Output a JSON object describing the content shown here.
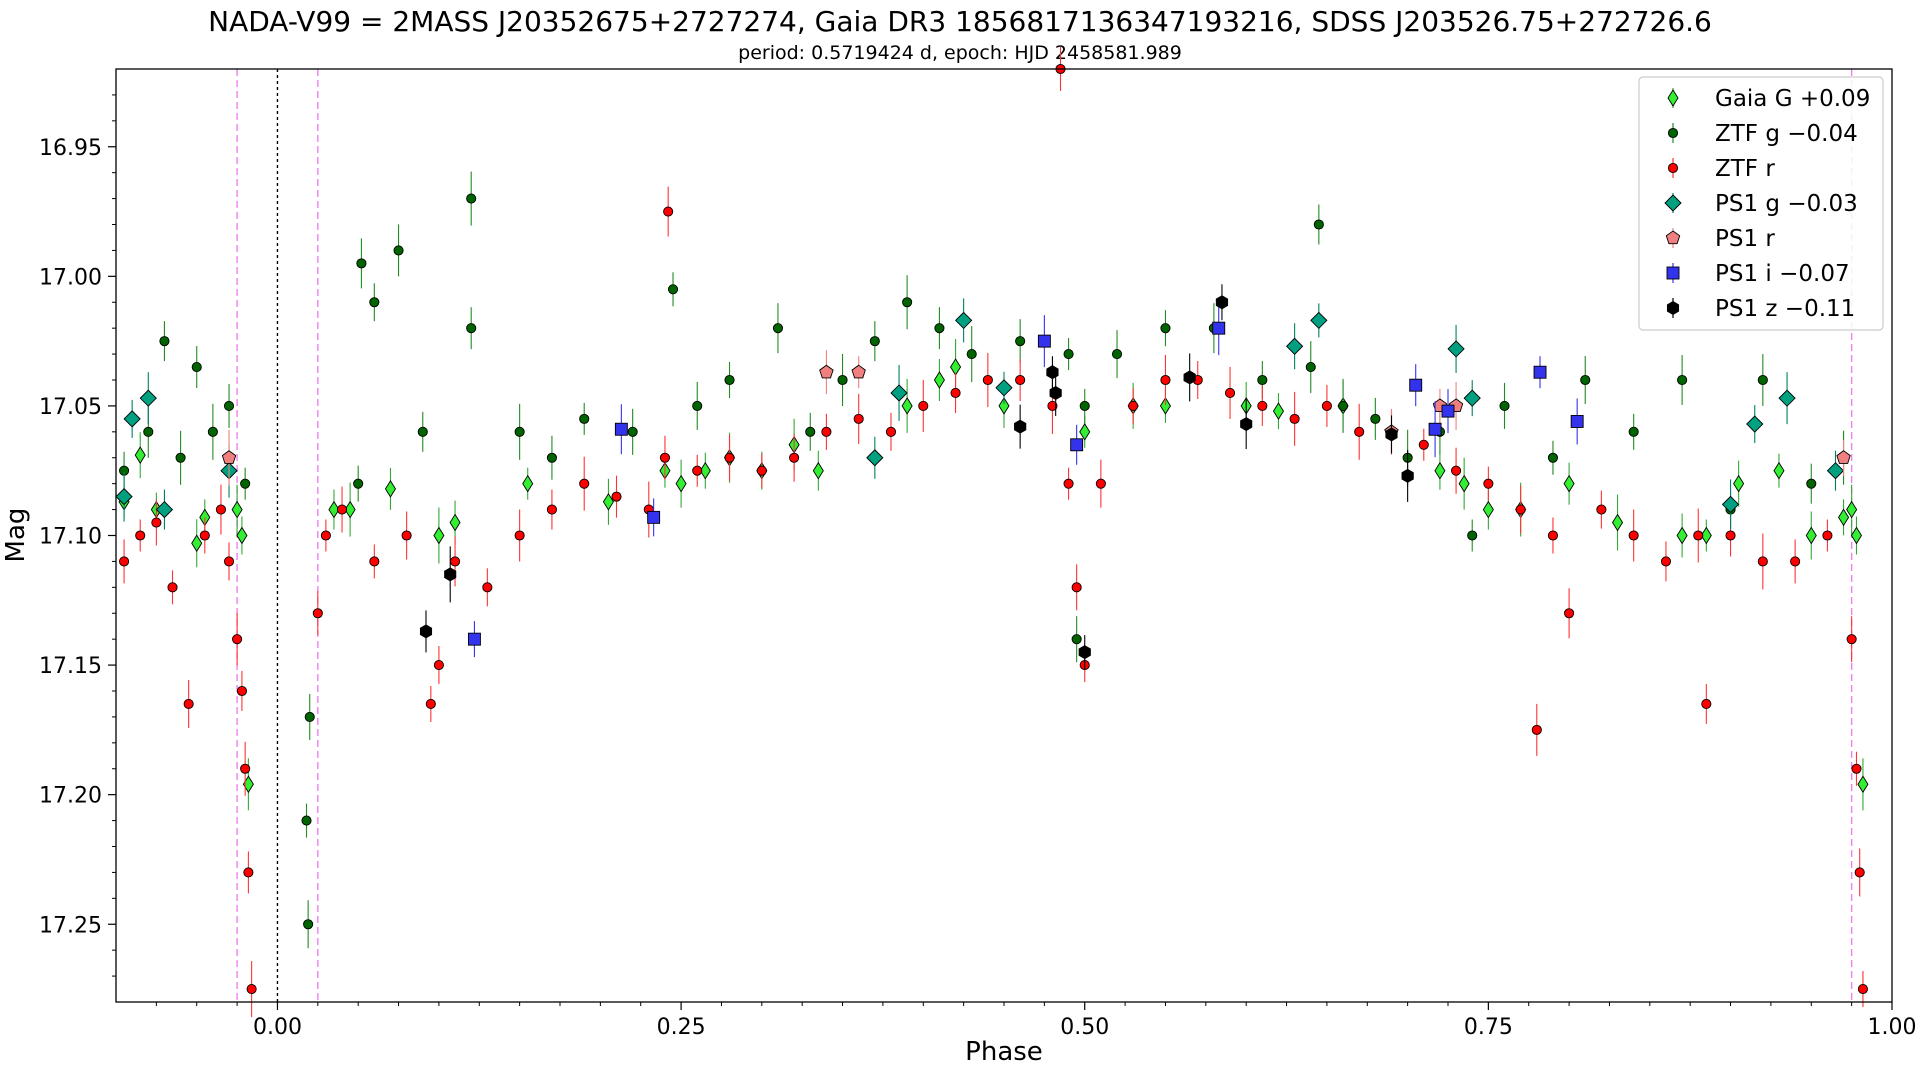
{
  "chart_data": {
    "type": "scatter",
    "title": "NADA-V99 = 2MASS J20352675+2727274, Gaia DR3 1856817136347193216, SDSS J203526.75+272726.6",
    "subtitle": "period: 0.5719424 d, epoch: HJD 2458581.989",
    "xlabel": "Phase",
    "ylabel": "Mag",
    "xlim": [
      -0.1,
      1.0
    ],
    "ylim": [
      17.28,
      16.92
    ],
    "y_inverted": true,
    "x_ticks": [
      0.0,
      0.25,
      0.5,
      0.75,
      1.0
    ],
    "x_tick_labels": [
      "0.00",
      "0.25",
      "0.50",
      "0.75",
      "1.00"
    ],
    "y_ticks": [
      16.95,
      17.0,
      17.05,
      17.1,
      17.15,
      17.2,
      17.25
    ],
    "y_tick_labels": [
      "16.95",
      "17.00",
      "17.05",
      "17.10",
      "17.15",
      "17.20",
      "17.25"
    ],
    "grid": false,
    "legend_position": "top-right",
    "vertical_lines": [
      {
        "x": 0.0,
        "style": "dotted",
        "color": "#000000"
      },
      {
        "x": -0.025,
        "style": "dashed",
        "color": "#ee82ee"
      },
      {
        "x": 0.025,
        "style": "dashed",
        "color": "#ee82ee"
      },
      {
        "x": 0.975,
        "style": "dashed",
        "color": "#ee82ee"
      }
    ],
    "series": [
      {
        "name": "Gaia G +0.09",
        "marker": "diamond",
        "color": "#33ee33",
        "error_color": "#33aa33",
        "points": [
          [
            -0.095,
            17.087
          ],
          [
            -0.085,
            17.069
          ],
          [
            -0.075,
            17.09
          ],
          [
            -0.05,
            17.103
          ],
          [
            -0.045,
            17.093
          ],
          [
            -0.025,
            17.09
          ],
          [
            -0.022,
            17.1
          ],
          [
            -0.018,
            17.196
          ],
          [
            0.035,
            17.09
          ],
          [
            0.045,
            17.09
          ],
          [
            0.07,
            17.082
          ],
          [
            0.1,
            17.1
          ],
          [
            0.11,
            17.095
          ],
          [
            0.155,
            17.08
          ],
          [
            0.205,
            17.087
          ],
          [
            0.24,
            17.075
          ],
          [
            0.25,
            17.08
          ],
          [
            0.265,
            17.075
          ],
          [
            0.28,
            17.07
          ],
          [
            0.3,
            17.075
          ],
          [
            0.32,
            17.065
          ],
          [
            0.335,
            17.075
          ],
          [
            0.39,
            17.05
          ],
          [
            0.41,
            17.04
          ],
          [
            0.42,
            17.035
          ],
          [
            0.45,
            17.05
          ],
          [
            0.5,
            17.06
          ],
          [
            0.53,
            17.05
          ],
          [
            0.55,
            17.05
          ],
          [
            0.6,
            17.05
          ],
          [
            0.62,
            17.052
          ],
          [
            0.66,
            17.05
          ],
          [
            0.72,
            17.075
          ],
          [
            0.735,
            17.08
          ],
          [
            0.75,
            17.09
          ],
          [
            0.77,
            17.09
          ],
          [
            0.8,
            17.08
          ],
          [
            0.83,
            17.095
          ],
          [
            0.87,
            17.1
          ],
          [
            0.885,
            17.1
          ],
          [
            0.905,
            17.08
          ],
          [
            0.93,
            17.075
          ],
          [
            0.95,
            17.1
          ],
          [
            0.97,
            17.093
          ],
          [
            0.975,
            17.09
          ],
          [
            0.978,
            17.1
          ],
          [
            0.982,
            17.196
          ]
        ]
      },
      {
        "name": "ZTF g −0.04",
        "marker": "circle",
        "color": "#006400",
        "error_color": "#228b22",
        "points": [
          [
            -0.095,
            17.075
          ],
          [
            -0.08,
            17.06
          ],
          [
            -0.07,
            17.025
          ],
          [
            -0.06,
            17.07
          ],
          [
            -0.05,
            17.035
          ],
          [
            -0.04,
            17.06
          ],
          [
            -0.03,
            17.05
          ],
          [
            -0.02,
            17.08
          ],
          [
            0.02,
            17.17
          ],
          [
            0.018,
            17.21
          ],
          [
            0.019,
            17.25
          ],
          [
            0.05,
            17.08
          ],
          [
            0.052,
            16.995
          ],
          [
            0.06,
            17.01
          ],
          [
            0.075,
            16.99
          ],
          [
            0.09,
            17.06
          ],
          [
            0.12,
            16.97
          ],
          [
            0.12,
            17.02
          ],
          [
            0.15,
            17.06
          ],
          [
            0.17,
            17.07
          ],
          [
            0.19,
            17.055
          ],
          [
            0.22,
            17.06
          ],
          [
            0.245,
            17.005
          ],
          [
            0.26,
            17.05
          ],
          [
            0.28,
            17.04
          ],
          [
            0.31,
            17.02
          ],
          [
            0.33,
            17.06
          ],
          [
            0.35,
            17.04
          ],
          [
            0.37,
            17.025
          ],
          [
            0.39,
            17.01
          ],
          [
            0.41,
            17.02
          ],
          [
            0.43,
            17.03
          ],
          [
            0.46,
            17.025
          ],
          [
            0.49,
            17.03
          ],
          [
            0.495,
            17.14
          ],
          [
            0.5,
            17.05
          ],
          [
            0.52,
            17.03
          ],
          [
            0.55,
            17.02
          ],
          [
            0.58,
            17.02
          ],
          [
            0.61,
            17.04
          ],
          [
            0.64,
            17.035
          ],
          [
            0.645,
            16.98
          ],
          [
            0.66,
            17.05
          ],
          [
            0.68,
            17.055
          ],
          [
            0.7,
            17.07
          ],
          [
            0.72,
            17.06
          ],
          [
            0.74,
            17.1
          ],
          [
            0.76,
            17.05
          ],
          [
            0.79,
            17.07
          ],
          [
            0.81,
            17.04
          ],
          [
            0.84,
            17.06
          ],
          [
            0.87,
            17.04
          ],
          [
            0.9,
            17.09
          ],
          [
            0.92,
            17.04
          ],
          [
            0.95,
            17.08
          ],
          [
            0.97,
            17.07
          ]
        ]
      },
      {
        "name": "ZTF r",
        "marker": "circle",
        "color": "#ff0000",
        "error_color": "#ff3333",
        "points": [
          [
            -0.095,
            17.11
          ],
          [
            -0.085,
            17.1
          ],
          [
            -0.075,
            17.095
          ],
          [
            -0.065,
            17.12
          ],
          [
            -0.055,
            17.165
          ],
          [
            -0.045,
            17.1
          ],
          [
            -0.035,
            17.09
          ],
          [
            -0.03,
            17.11
          ],
          [
            -0.025,
            17.14
          ],
          [
            -0.022,
            17.16
          ],
          [
            -0.02,
            17.19
          ],
          [
            -0.018,
            17.23
          ],
          [
            -0.016,
            17.275
          ],
          [
            0.025,
            17.13
          ],
          [
            0.03,
            17.1
          ],
          [
            0.04,
            17.09
          ],
          [
            0.06,
            17.11
          ],
          [
            0.08,
            17.1
          ],
          [
            0.095,
            17.165
          ],
          [
            0.11,
            17.11
          ],
          [
            0.13,
            17.12
          ],
          [
            0.15,
            17.1
          ],
          [
            0.17,
            17.09
          ],
          [
            0.19,
            17.08
          ],
          [
            0.21,
            17.085
          ],
          [
            0.23,
            17.09
          ],
          [
            0.24,
            17.07
          ],
          [
            0.26,
            17.075
          ],
          [
            0.28,
            17.07
          ],
          [
            0.3,
            17.075
          ],
          [
            0.32,
            17.07
          ],
          [
            0.34,
            17.06
          ],
          [
            0.36,
            17.055
          ],
          [
            0.38,
            17.06
          ],
          [
            0.4,
            17.05
          ],
          [
            0.42,
            17.045
          ],
          [
            0.44,
            17.04
          ],
          [
            0.46,
            17.04
          ],
          [
            0.48,
            17.05
          ],
          [
            0.485,
            16.92
          ],
          [
            0.49,
            17.08
          ],
          [
            0.495,
            17.12
          ],
          [
            0.5,
            17.15
          ],
          [
            0.51,
            17.08
          ],
          [
            0.53,
            17.05
          ],
          [
            0.55,
            17.04
          ],
          [
            0.57,
            17.04
          ],
          [
            0.59,
            17.045
          ],
          [
            0.61,
            17.05
          ],
          [
            0.63,
            17.055
          ],
          [
            0.65,
            17.05
          ],
          [
            0.67,
            17.06
          ],
          [
            0.69,
            17.06
          ],
          [
            0.71,
            17.065
          ],
          [
            0.73,
            17.075
          ],
          [
            0.75,
            17.08
          ],
          [
            0.77,
            17.09
          ],
          [
            0.79,
            17.1
          ],
          [
            0.8,
            17.13
          ],
          [
            0.82,
            17.09
          ],
          [
            0.84,
            17.1
          ],
          [
            0.86,
            17.11
          ],
          [
            0.88,
            17.1
          ],
          [
            0.9,
            17.1
          ],
          [
            0.92,
            17.11
          ],
          [
            0.94,
            17.11
          ],
          [
            0.96,
            17.1
          ],
          [
            0.975,
            17.14
          ],
          [
            0.978,
            17.19
          ],
          [
            0.98,
            17.23
          ],
          [
            0.982,
            17.275
          ],
          [
            0.242,
            16.975
          ],
          [
            0.1,
            17.15
          ],
          [
            0.78,
            17.175
          ],
          [
            0.885,
            17.165
          ]
        ]
      },
      {
        "name": "PS1 g −0.03",
        "marker": "diamond-wide",
        "color": "#00a080",
        "error_color": "#008060",
        "points": [
          [
            -0.095,
            17.085
          ],
          [
            -0.09,
            17.055
          ],
          [
            -0.08,
            17.047
          ],
          [
            -0.07,
            17.09
          ],
          [
            -0.03,
            17.075
          ],
          [
            0.37,
            17.07
          ],
          [
            0.385,
            17.045
          ],
          [
            0.425,
            17.017
          ],
          [
            0.45,
            17.043
          ],
          [
            0.63,
            17.027
          ],
          [
            0.645,
            17.017
          ],
          [
            0.73,
            17.028
          ],
          [
            0.74,
            17.047
          ],
          [
            0.9,
            17.088
          ],
          [
            0.915,
            17.057
          ],
          [
            0.935,
            17.047
          ],
          [
            0.965,
            17.075
          ]
        ]
      },
      {
        "name": "PS1 r",
        "marker": "pentagon",
        "color": "#f08080",
        "error_color": "#f08080",
        "points": [
          [
            -0.03,
            17.07
          ],
          [
            0.34,
            17.037
          ],
          [
            0.36,
            17.037
          ],
          [
            0.69,
            17.06
          ],
          [
            0.72,
            17.05
          ],
          [
            0.73,
            17.05
          ],
          [
            0.97,
            17.07
          ]
        ]
      },
      {
        "name": "PS1 i −0.07",
        "marker": "square",
        "color": "#3333ee",
        "error_color": "#3333ee",
        "points": [
          [
            0.122,
            17.14
          ],
          [
            0.213,
            17.059
          ],
          [
            0.233,
            17.093
          ],
          [
            0.475,
            17.025
          ],
          [
            0.495,
            17.065
          ],
          [
            0.583,
            17.02
          ],
          [
            0.705,
            17.042
          ],
          [
            0.717,
            17.059
          ],
          [
            0.725,
            17.052
          ],
          [
            0.782,
            17.037
          ],
          [
            0.805,
            17.056
          ]
        ]
      },
      {
        "name": "PS1 z −0.11",
        "marker": "hexagon",
        "color": "#000000",
        "error_color": "#000000",
        "points": [
          [
            0.092,
            17.137
          ],
          [
            0.107,
            17.115
          ],
          [
            0.46,
            17.058
          ],
          [
            0.48,
            17.037
          ],
          [
            0.482,
            17.045
          ],
          [
            0.5,
            17.145
          ],
          [
            0.565,
            17.039
          ],
          [
            0.585,
            17.01
          ],
          [
            0.6,
            17.057
          ],
          [
            0.69,
            17.061
          ],
          [
            0.7,
            17.077
          ]
        ]
      }
    ]
  }
}
